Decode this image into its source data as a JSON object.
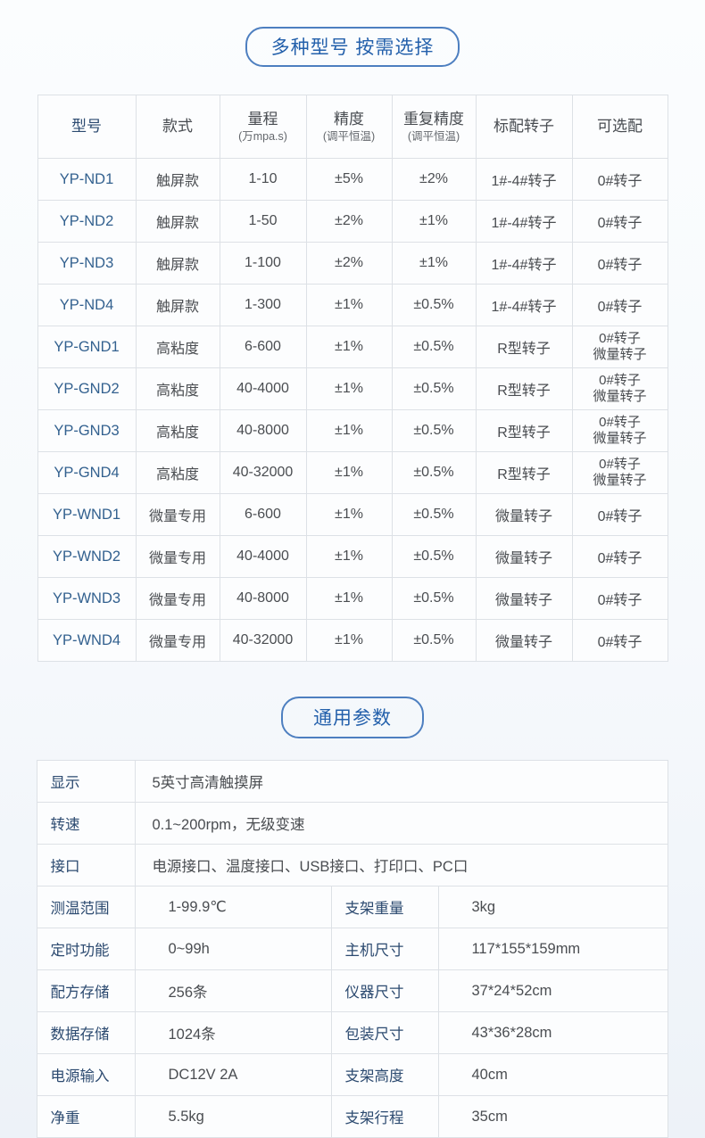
{
  "colors": {
    "accent_blue": "#2360ab",
    "pill_border": "#4d7fc0",
    "label_navy": "#2c4a70",
    "model_blue": "#33618f",
    "body_text": "#4a4d51",
    "grid_line": "#dde1e6",
    "page_bottom": "#edf2f8"
  },
  "models": {
    "title": "多种型号 按需选择",
    "headers": [
      {
        "main": "型号"
      },
      {
        "main": "款式"
      },
      {
        "main": "量程",
        "sub": "(万mpa.s)"
      },
      {
        "main": "精度",
        "sub": "(调平恒温)"
      },
      {
        "main": "重复精度",
        "sub": "(调平恒温)"
      },
      {
        "main": "标配转子"
      },
      {
        "main": "可选配"
      }
    ],
    "rows": [
      [
        "YP-ND1",
        "触屏款",
        "1-10",
        "±5%",
        "±2%",
        "1#-4#转子",
        "0#转子"
      ],
      [
        "YP-ND2",
        "触屏款",
        "1-50",
        "±2%",
        "±1%",
        "1#-4#转子",
        "0#转子"
      ],
      [
        "YP-ND3",
        "触屏款",
        "1-100",
        "±2%",
        "±1%",
        "1#-4#转子",
        "0#转子"
      ],
      [
        "YP-ND4",
        "触屏款",
        "1-300",
        "±1%",
        "±0.5%",
        "1#-4#转子",
        "0#转子"
      ],
      [
        "YP-GND1",
        "高粘度",
        "6-600",
        "±1%",
        "±0.5%",
        "R型转子",
        [
          "0#转子",
          "微量转子"
        ]
      ],
      [
        "YP-GND2",
        "高粘度",
        "40-4000",
        "±1%",
        "±0.5%",
        "R型转子",
        [
          "0#转子",
          "微量转子"
        ]
      ],
      [
        "YP-GND3",
        "高粘度",
        "40-8000",
        "±1%",
        "±0.5%",
        "R型转子",
        [
          "0#转子",
          "微量转子"
        ]
      ],
      [
        "YP-GND4",
        "高粘度",
        "40-32000",
        "±1%",
        "±0.5%",
        "R型转子",
        [
          "0#转子",
          "微量转子"
        ]
      ],
      [
        "YP-WND1",
        "微量专用",
        "6-600",
        "±1%",
        "±0.5%",
        "微量转子",
        "0#转子"
      ],
      [
        "YP-WND2",
        "微量专用",
        "40-4000",
        "±1%",
        "±0.5%",
        "微量转子",
        "0#转子"
      ],
      [
        "YP-WND3",
        "微量专用",
        "40-8000",
        "±1%",
        "±0.5%",
        "微量转子",
        "0#转子"
      ],
      [
        "YP-WND4",
        "微量专用",
        "40-32000",
        "±1%",
        "±0.5%",
        "微量转子",
        "0#转子"
      ]
    ]
  },
  "general": {
    "title": "通用参数",
    "rows": [
      {
        "label": "显示",
        "value": "5英寸高清触摸屏",
        "full": true
      },
      {
        "label": "转速",
        "value": "0.1~200rpm，无级变速",
        "full": true
      },
      {
        "label": "接口",
        "value": "电源接口、温度接口、USB接口、打印口、PC口",
        "full": true
      },
      {
        "label": "测温范围",
        "value": "1-99.9℃",
        "label2": "支架重量",
        "value2": "3kg"
      },
      {
        "label": "定时功能",
        "value": "0~99h",
        "label2": "主机尺寸",
        "value2": "117*155*159mm"
      },
      {
        "label": "配方存储",
        "value": "256条",
        "label2": "仪器尺寸",
        "value2": "37*24*52cm"
      },
      {
        "label": "数据存储",
        "value": "1024条",
        "label2": "包装尺寸",
        "value2": "43*36*28cm"
      },
      {
        "label": "电源输入",
        "value": "DC12V 2A",
        "label2": "支架高度",
        "value2": "40cm"
      },
      {
        "label": "净重",
        "value": "5.5kg",
        "label2": "支架行程",
        "value2": "35cm"
      }
    ]
  }
}
